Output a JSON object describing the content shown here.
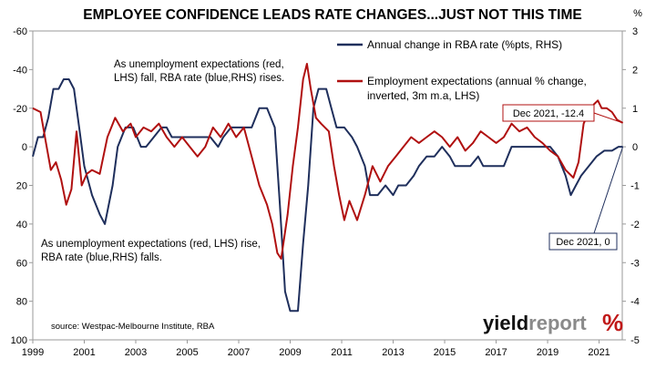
{
  "chart_data": {
    "type": "line",
    "title": "EMPLOYEE CONFIDENCE LEADS RATE CHANGES...JUST NOT THIS TIME",
    "left_axis": {
      "inverted": true,
      "range": [
        -60,
        100
      ],
      "ticks": [
        -60,
        -40,
        -20,
        0,
        20,
        40,
        60,
        80,
        100
      ]
    },
    "right_axis": {
      "unit_label": "%",
      "range": [
        -5,
        3
      ],
      "ticks": [
        3,
        2,
        1,
        0,
        -1,
        -2,
        -3,
        -4,
        -5
      ]
    },
    "x_axis": {
      "range": [
        1999,
        2021.9
      ],
      "ticks": [
        "1999",
        "2001",
        "2003",
        "2005",
        "2007",
        "2009",
        "2011",
        "2013",
        "2015",
        "2017",
        "2019",
        "2021"
      ]
    },
    "grid": false,
    "legend_position": "top-right",
    "series": [
      {
        "name": "Annual change in RBA rate (%pts, RHS)",
        "axis": "right",
        "color": "#1f2f5c",
        "points": [
          [
            1999.0,
            -0.25
          ],
          [
            1999.2,
            0.25
          ],
          [
            1999.4,
            0.25
          ],
          [
            1999.6,
            0.75
          ],
          [
            1999.8,
            1.5
          ],
          [
            2000.0,
            1.5
          ],
          [
            2000.2,
            1.75
          ],
          [
            2000.4,
            1.75
          ],
          [
            2000.6,
            1.5
          ],
          [
            2000.8,
            0.5
          ],
          [
            2001.0,
            -0.5
          ],
          [
            2001.3,
            -1.25
          ],
          [
            2001.6,
            -1.75
          ],
          [
            2001.8,
            -2.0
          ],
          [
            2002.1,
            -1.0
          ],
          [
            2002.3,
            0.0
          ],
          [
            2002.6,
            0.5
          ],
          [
            2002.9,
            0.5
          ],
          [
            2003.2,
            0.0
          ],
          [
            2003.4,
            0.0
          ],
          [
            2003.7,
            0.25
          ],
          [
            2004.0,
            0.5
          ],
          [
            2004.2,
            0.5
          ],
          [
            2004.4,
            0.25
          ],
          [
            2004.7,
            0.25
          ],
          [
            2005.0,
            0.25
          ],
          [
            2005.3,
            0.25
          ],
          [
            2005.6,
            0.25
          ],
          [
            2005.9,
            0.25
          ],
          [
            2006.2,
            0.0
          ],
          [
            2006.4,
            0.25
          ],
          [
            2006.7,
            0.5
          ],
          [
            2007.0,
            0.5
          ],
          [
            2007.2,
            0.5
          ],
          [
            2007.5,
            0.5
          ],
          [
            2007.8,
            1.0
          ],
          [
            2008.1,
            1.0
          ],
          [
            2008.4,
            0.5
          ],
          [
            2008.6,
            -1.5
          ],
          [
            2008.8,
            -3.75
          ],
          [
            2009.0,
            -4.25
          ],
          [
            2009.3,
            -4.25
          ],
          [
            2009.5,
            -2.5
          ],
          [
            2009.7,
            -1.0
          ],
          [
            2009.9,
            1.0
          ],
          [
            2010.1,
            1.5
          ],
          [
            2010.4,
            1.5
          ],
          [
            2010.6,
            1.0
          ],
          [
            2010.8,
            0.5
          ],
          [
            2011.1,
            0.5
          ],
          [
            2011.4,
            0.25
          ],
          [
            2011.6,
            0.0
          ],
          [
            2011.9,
            -0.5
          ],
          [
            2012.1,
            -1.25
          ],
          [
            2012.4,
            -1.25
          ],
          [
            2012.7,
            -1.0
          ],
          [
            2013.0,
            -1.25
          ],
          [
            2013.2,
            -1.0
          ],
          [
            2013.5,
            -1.0
          ],
          [
            2013.8,
            -0.75
          ],
          [
            2014.0,
            -0.5
          ],
          [
            2014.3,
            -0.25
          ],
          [
            2014.6,
            -0.25
          ],
          [
            2014.9,
            0.0
          ],
          [
            2015.2,
            -0.25
          ],
          [
            2015.4,
            -0.5
          ],
          [
            2015.7,
            -0.5
          ],
          [
            2016.0,
            -0.5
          ],
          [
            2016.3,
            -0.25
          ],
          [
            2016.5,
            -0.5
          ],
          [
            2016.8,
            -0.5
          ],
          [
            2017.0,
            -0.5
          ],
          [
            2017.3,
            -0.5
          ],
          [
            2017.6,
            0.0
          ],
          [
            2017.9,
            0.0
          ],
          [
            2018.2,
            0.0
          ],
          [
            2018.5,
            0.0
          ],
          [
            2018.8,
            0.0
          ],
          [
            2019.1,
            0.0
          ],
          [
            2019.4,
            -0.25
          ],
          [
            2019.7,
            -0.75
          ],
          [
            2019.9,
            -1.25
          ],
          [
            2020.1,
            -1.0
          ],
          [
            2020.3,
            -0.75
          ],
          [
            2020.6,
            -0.5
          ],
          [
            2020.9,
            -0.25
          ],
          [
            2021.2,
            -0.1
          ],
          [
            2021.5,
            -0.1
          ],
          [
            2021.75,
            0.0
          ],
          [
            2021.92,
            0.0
          ]
        ]
      },
      {
        "name": "Employment expectations (annual % change, inverted, 3m m.a, LHS)",
        "axis": "left",
        "color": "#b01010",
        "points": [
          [
            1999.0,
            -20
          ],
          [
            1999.3,
            -18
          ],
          [
            1999.5,
            -3
          ],
          [
            1999.7,
            12
          ],
          [
            1999.9,
            8
          ],
          [
            2000.1,
            17
          ],
          [
            2000.3,
            30
          ],
          [
            2000.5,
            22
          ],
          [
            2000.7,
            -8
          ],
          [
            2000.9,
            20
          ],
          [
            2001.1,
            14
          ],
          [
            2001.3,
            12
          ],
          [
            2001.6,
            14
          ],
          [
            2001.9,
            -5
          ],
          [
            2002.2,
            -15
          ],
          [
            2002.5,
            -8
          ],
          [
            2002.8,
            -12
          ],
          [
            2003.0,
            -5
          ],
          [
            2003.3,
            -10
          ],
          [
            2003.6,
            -8
          ],
          [
            2003.9,
            -12
          ],
          [
            2004.2,
            -5
          ],
          [
            2004.5,
            0
          ],
          [
            2004.8,
            -5
          ],
          [
            2005.1,
            0
          ],
          [
            2005.4,
            5
          ],
          [
            2005.7,
            0
          ],
          [
            2006.0,
            -10
          ],
          [
            2006.3,
            -5
          ],
          [
            2006.6,
            -12
          ],
          [
            2006.9,
            -5
          ],
          [
            2007.2,
            -10
          ],
          [
            2007.5,
            5
          ],
          [
            2007.8,
            20
          ],
          [
            2008.1,
            30
          ],
          [
            2008.3,
            40
          ],
          [
            2008.5,
            55
          ],
          [
            2008.65,
            58
          ],
          [
            2008.9,
            35
          ],
          [
            2009.1,
            10
          ],
          [
            2009.3,
            -10
          ],
          [
            2009.5,
            -35
          ],
          [
            2009.65,
            -43
          ],
          [
            2009.8,
            -30
          ],
          [
            2010.0,
            -15
          ],
          [
            2010.2,
            -12
          ],
          [
            2010.5,
            -8
          ],
          [
            2010.7,
            10
          ],
          [
            2010.9,
            25
          ],
          [
            2011.1,
            38
          ],
          [
            2011.3,
            28
          ],
          [
            2011.6,
            38
          ],
          [
            2011.9,
            25
          ],
          [
            2012.2,
            10
          ],
          [
            2012.5,
            18
          ],
          [
            2012.8,
            10
          ],
          [
            2013.1,
            5
          ],
          [
            2013.4,
            0
          ],
          [
            2013.7,
            -5
          ],
          [
            2014.0,
            -2
          ],
          [
            2014.3,
            -5
          ],
          [
            2014.6,
            -8
          ],
          [
            2014.9,
            -5
          ],
          [
            2015.2,
            0
          ],
          [
            2015.5,
            -5
          ],
          [
            2015.8,
            2
          ],
          [
            2016.1,
            -2
          ],
          [
            2016.4,
            -8
          ],
          [
            2016.7,
            -5
          ],
          [
            2017.0,
            -2
          ],
          [
            2017.3,
            -5
          ],
          [
            2017.6,
            -12
          ],
          [
            2017.9,
            -8
          ],
          [
            2018.2,
            -10
          ],
          [
            2018.5,
            -5
          ],
          [
            2018.8,
            -2
          ],
          [
            2019.1,
            2
          ],
          [
            2019.4,
            5
          ],
          [
            2019.7,
            12
          ],
          [
            2020.0,
            16
          ],
          [
            2020.2,
            8
          ],
          [
            2020.4,
            -12
          ],
          [
            2020.6,
            -18
          ],
          [
            2020.8,
            -22
          ],
          [
            2020.95,
            -24
          ],
          [
            2021.1,
            -20
          ],
          [
            2021.3,
            -20
          ],
          [
            2021.5,
            -18
          ],
          [
            2021.7,
            -14
          ],
          [
            2021.92,
            -12.4
          ]
        ]
      }
    ],
    "annotations": {
      "top_note": [
        "As unemployment expectations (red,",
        "LHS) fall, RBA rate (blue,RHS) rises."
      ],
      "bottom_note": [
        "As unemployment expectations (red, LHS) rise,",
        "RBA rate (blue,RHS) falls."
      ],
      "callout_red": "Dec 2021, -12.4",
      "callout_blue": "Dec 2021, 0"
    },
    "source": "source: Westpac-Melbourne Institute, RBA",
    "logo": {
      "word1": "yield",
      "word2": "report",
      "symbol": "%"
    }
  }
}
